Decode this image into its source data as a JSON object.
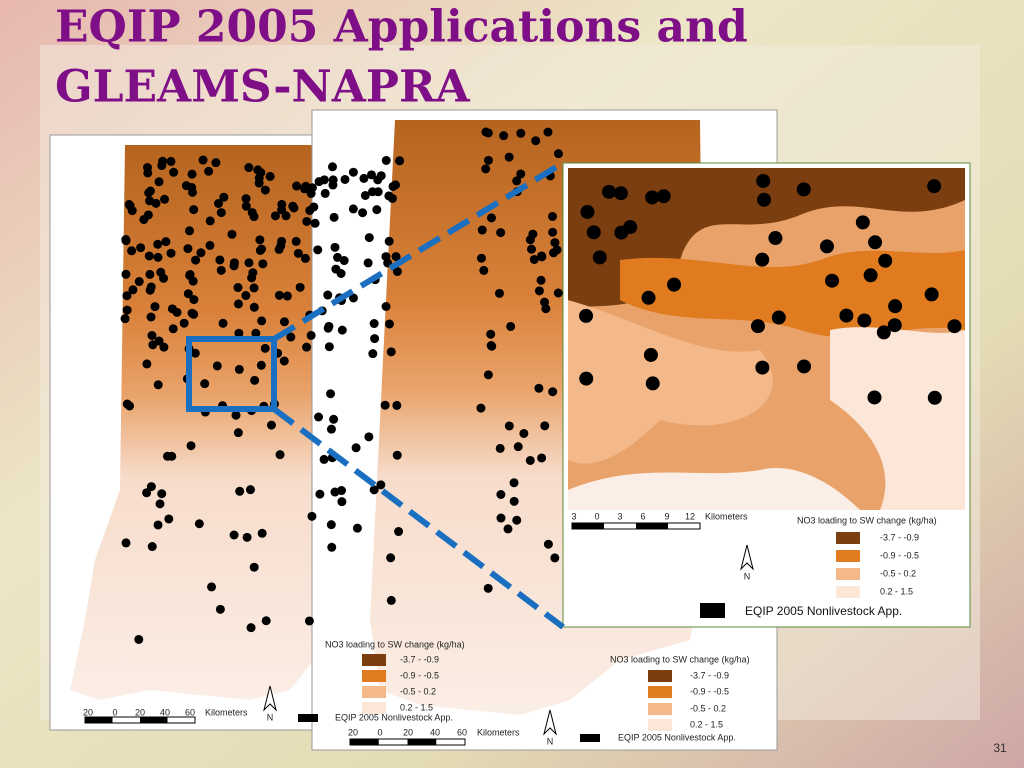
{
  "title": {
    "line1": "EQIP 2005 Applications and",
    "line2": "GLEAMS-NAPRA"
  },
  "maps": [
    {
      "legend_title": "NO3 loading to SW change (kg/ha)",
      "legend_items": [
        "-3.7 - -0.9",
        "-0.9 - -0.5",
        "-0.5 - 0.2",
        "0.2 - 1.5"
      ],
      "scale_labels": [
        "20",
        "0",
        "20",
        "40",
        "60"
      ],
      "scale_unit": "Kilometers",
      "north": "N",
      "points_label": "EQIP 2005 Nonlivestock App."
    },
    {
      "legend_title": "NO3 loading to SW change (kg/ha)",
      "legend_items": [
        "-3.7 - -0.9",
        "-0.9 - -0.5",
        "-0.5 - 0.2",
        "0.2 - 1.5"
      ],
      "scale_labels": [
        "20",
        "0",
        "20",
        "40",
        "60"
      ],
      "scale_unit": "Kilometers",
      "north": "N",
      "points_label": "EQIP 2005 Nonlivestock App."
    },
    {
      "legend_title": "NO3 loading to SW change (kg/ha)",
      "legend_items": [
        "-3.7 - -0.9",
        "-0.9 - -0.5",
        "-0.5 - 0.2",
        "0.2 - 1.5"
      ],
      "scale_labels": [
        "3",
        "0",
        "3",
        "6",
        "9",
        "12"
      ],
      "scale_unit": "Kilometers",
      "north": "N",
      "points_label": "EQIP 2005 Nonlivestock App."
    }
  ],
  "page_number": "31"
}
